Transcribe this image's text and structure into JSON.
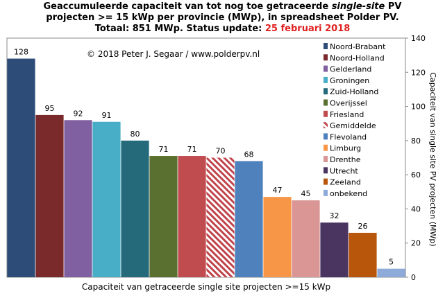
{
  "title": {
    "line1_a": "Geaccumuleerde capaciteit van tot nog toe getraceerde ",
    "line1_b": "single-site",
    "line1_c": " PV",
    "line2": "projecten >= 15 kWp per provincie (MWp), in spreadsheet Polder PV.",
    "line3_a": "Totaal: 851 MWp. Status update: ",
    "line3_b": "25 februari  2018"
  },
  "copyright": "© 2018 Peter J. Segaar / www.polderpv.nl",
  "colors": {
    "accent_red": "#e02020",
    "hatch": "#c0444c"
  },
  "chart_data": {
    "type": "bar",
    "categories": [
      "Noord-Brabant",
      "Noord-Holland",
      "Gelderland",
      "Groningen",
      "Zuid-Holland",
      "Overijssel",
      "Friesland",
      "Gemiddelde",
      "Flevoland",
      "Limburg",
      "Drenthe",
      "Utrecht",
      "Zeeland",
      "onbekend"
    ],
    "values": [
      128,
      95,
      92,
      91,
      80,
      71,
      71,
      70,
      68,
      47,
      45,
      32,
      26,
      5
    ],
    "colors": [
      "#2d4d78",
      "#7a2a2a",
      "#8060a0",
      "#48aec8",
      "#256a7a",
      "#5a7030",
      "#c04c50",
      "#c0444c",
      "#4f81bd",
      "#f79646",
      "#da9694",
      "#4a3560",
      "#b8560c",
      "#8eaad8"
    ],
    "hatched_category": "Gemiddelde",
    "highlight_label_color": "#e02020",
    "xlabel": "Capaciteit van getraceerde single site projecten >=15 kWp",
    "ylabel": "Capaciteit van single site PV projecten (MWp)",
    "ylim": [
      0,
      140
    ],
    "yticks": [
      0,
      20,
      40,
      60,
      80,
      100,
      120,
      140
    ],
    "y_axis_side": "right",
    "grid": false,
    "legend_position": "top-right"
  }
}
